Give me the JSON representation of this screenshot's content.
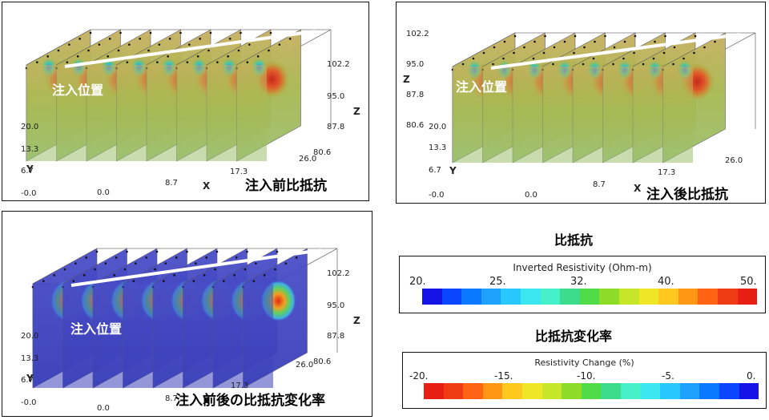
{
  "panels": [
    {
      "id": "before",
      "caption": "注入前比抵抗",
      "inject_label": "注入位置",
      "axes": {
        "x_name": "X",
        "y_name": "Y",
        "z_name": "Z",
        "x_ticks": [
          "0.0",
          "8.7",
          "17.3",
          "26.0"
        ],
        "y_ticks": [
          "-0.0",
          "6.7",
          "13.3",
          "20.0"
        ],
        "z_ticks": [
          "80.6",
          "87.8",
          "95.0",
          "102.2"
        ]
      },
      "colormap": "resistivity"
    },
    {
      "id": "after",
      "caption": "注入後比抵抗",
      "inject_label": "注入位置",
      "axes": {
        "x_name": "X",
        "y_name": "Y",
        "z_name": "Z",
        "x_ticks": [
          "0.0",
          "8.7",
          "17.3",
          "26.0"
        ],
        "y_ticks": [
          "-0.0",
          "6.7",
          "13.3",
          "20.0"
        ],
        "z_ticks": [
          "80.6",
          "87.8",
          "95.0",
          "102.2"
        ]
      },
      "colormap": "resistivity"
    },
    {
      "id": "change",
      "caption": "注入前後の比抵抗変化率",
      "inject_label": "注入位置",
      "axes": {
        "x_name": "X",
        "y_name": "Y",
        "z_name": "Z",
        "x_ticks": [
          "0.0",
          "8.7",
          "17.3",
          "26.0"
        ],
        "y_ticks": [
          "-0.0",
          "6.7",
          "13.3",
          "20.0"
        ],
        "z_ticks": [
          "80.6",
          "87.8",
          "95.0",
          "102.2"
        ]
      },
      "colormap": "change"
    }
  ],
  "legends": {
    "resistivity": {
      "heading": "比抵抗",
      "title": "Inverted Resistivity (Ohm-m)",
      "ticks": [
        "20.",
        "25.",
        "32.",
        "40.",
        "50."
      ],
      "colors": [
        "#1414e6",
        "#0a46ff",
        "#0a78ff",
        "#1ea0ff",
        "#28c8ff",
        "#3ce6f0",
        "#46f0c8",
        "#3cdc8c",
        "#50dc46",
        "#8cdc28",
        "#c8e628",
        "#f0e628",
        "#ffc81e",
        "#ff9614",
        "#ff6414",
        "#f03c14",
        "#e61e14"
      ]
    },
    "change": {
      "heading": "比抵抗変化率",
      "title": "Resistivity Change (%)",
      "ticks": [
        "-20.",
        "-15.",
        "-10.",
        "-5.",
        "0."
      ],
      "colors": [
        "#e61e14",
        "#f03c14",
        "#ff6414",
        "#ff9614",
        "#ffc81e",
        "#f0e628",
        "#c8e628",
        "#8cdc28",
        "#50dc46",
        "#3cdc8c",
        "#46f0c8",
        "#3ce6f0",
        "#28c8ff",
        "#1ea0ff",
        "#0a78ff",
        "#0a46ff",
        "#1414e6"
      ]
    }
  }
}
